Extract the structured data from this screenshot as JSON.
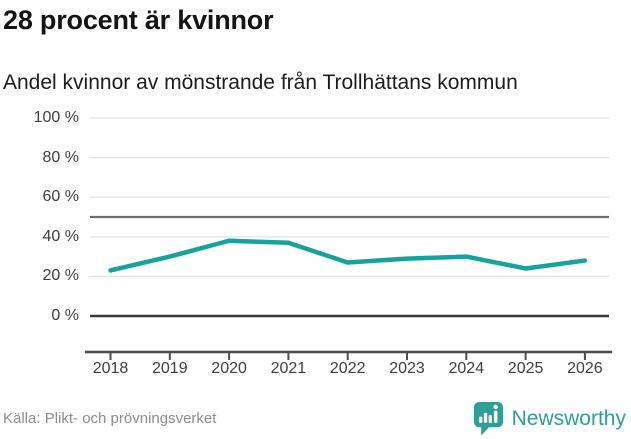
{
  "header": {
    "title": "28 procent är kvinnor",
    "subtitle": "Andel kvinnor av mönstrande från Trollhättans kommun"
  },
  "chart_data": {
    "type": "line",
    "title": "28 procent är kvinnor",
    "subtitle": "Andel kvinnor av mönstrande från Trollhättans kommun",
    "x": [
      "2018",
      "2019",
      "2020",
      "2021",
      "2022",
      "2023",
      "2024",
      "2025",
      "2026"
    ],
    "series": [
      {
        "name": "Andel kvinnor av mönstrande",
        "values": [
          23,
          30,
          38,
          37,
          27,
          29,
          30,
          24,
          28
        ]
      }
    ],
    "unit": "%",
    "ylim": [
      0,
      100
    ],
    "yticks": [
      {
        "value": 100,
        "label": "100 %"
      },
      {
        "value": 80,
        "label": "80 %"
      },
      {
        "value": 60,
        "label": "60 %"
      },
      {
        "value": 40,
        "label": "40 %"
      },
      {
        "value": 20,
        "label": "20 %"
      },
      {
        "value": 0,
        "label": "0 %"
      }
    ],
    "gridlines": {
      "light": [
        100,
        80,
        60,
        40,
        20
      ],
      "medium": [
        50
      ],
      "dark": [
        0
      ]
    },
    "legend": "none",
    "grid": "horizontal",
    "line_color": "#17a29b",
    "reference_line_color": "#6e6e6e",
    "zero_line_color": "#3b3b3b",
    "axis_color": "#4d4d4d"
  },
  "footer": {
    "source": "Källa: Plikt- och prövningsverket",
    "brand": "Newsworthy",
    "brand_color": "#2f9e94"
  }
}
